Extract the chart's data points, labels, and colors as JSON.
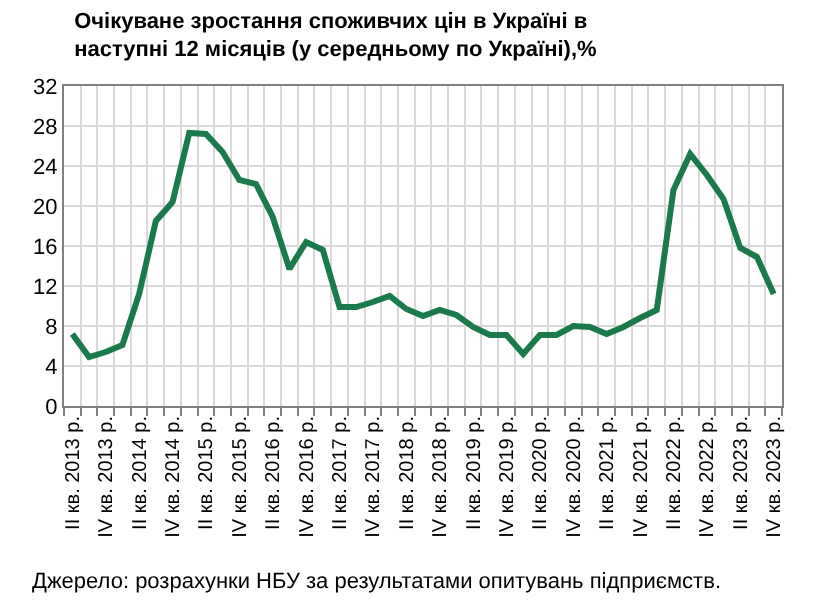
{
  "chart_data": {
    "type": "line",
    "title": "Очікуване зростання споживчих цін в Україні в наступні 12 місяців (у середньому по Україні),%",
    "categories": [
      "II кв. 2013 р.",
      null,
      "IV кв. 2013 р.",
      null,
      "II кв. 2014 р.",
      null,
      "IV кв. 2014 р.",
      null,
      "II кв. 2015 р.",
      null,
      "IV кв. 2015 р.",
      null,
      "II кв. 2016 р.",
      null,
      "IV кв. 2016 р.",
      null,
      "II кв. 2017 р.",
      null,
      "IV кв. 2017 р.",
      null,
      "II кв. 2018 р.",
      null,
      "IV кв. 2018 р.",
      null,
      "II кв. 2019 р.",
      null,
      "IV кв. 2019 р.",
      null,
      "II кв. 2020 р.",
      null,
      "IV кв. 2020 р.",
      null,
      "II кв. 2021 р.",
      null,
      "IV кв. 2021 р.",
      null,
      "II кв. 2022 р.",
      null,
      "IV кв. 2022 р.",
      null,
      "II кв. 2023 р.",
      null,
      "IV кв. 2023 р."
    ],
    "series": [
      {
        "color": "#1a7a4c",
        "values": [
          7.2,
          4.9,
          5.4,
          6.1,
          11.2,
          18.5,
          20.4,
          27.3,
          27.2,
          25.4,
          22.6,
          22.2,
          18.9,
          13.7,
          16.4,
          15.6,
          9.9,
          9.9,
          10.4,
          11.0,
          9.7,
          9.0,
          9.6,
          9.1,
          7.9,
          7.1,
          7.1,
          5.2,
          7.1,
          7.1,
          8.0,
          7.9,
          7.2,
          7.9,
          8.8,
          9.6,
          21.6,
          25.2,
          23.1,
          20.7,
          15.8,
          14.9,
          11.2
        ]
      }
    ],
    "ylim": [
      0,
      32
    ],
    "yticks": [
      0,
      4,
      8,
      12,
      16,
      20,
      24,
      28,
      32
    ],
    "grid": true,
    "marker": "none",
    "line_style": "solid",
    "annotations": [
      "Джерело: розрахунки НБУ за результатами опитувань підприємств."
    ]
  }
}
